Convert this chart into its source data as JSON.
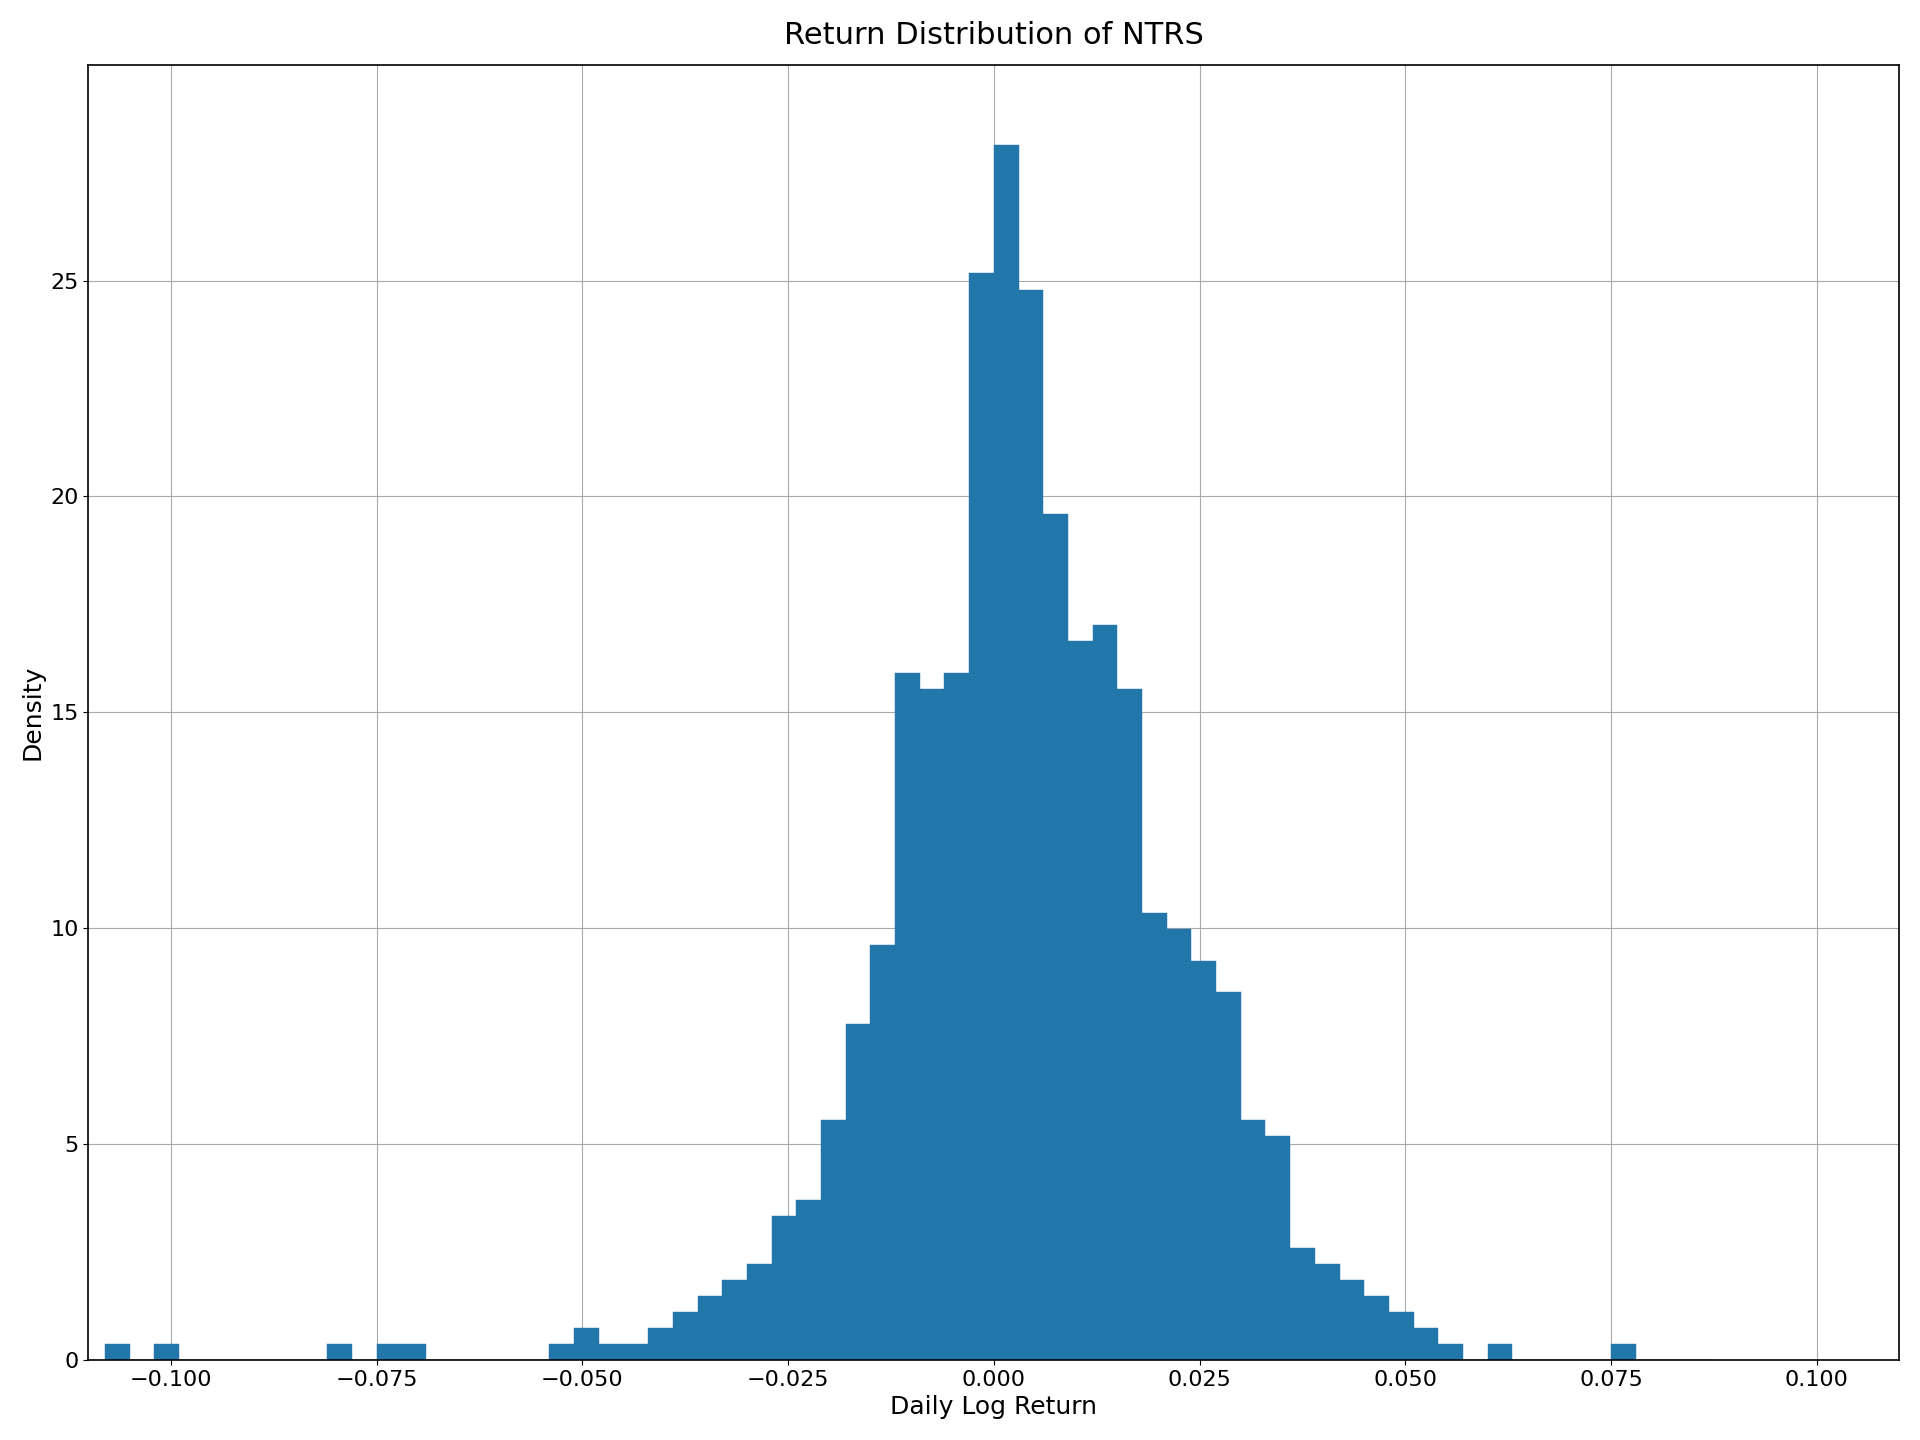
{
  "title": "Return Distribution of NTRS",
  "xlabel": "Daily Log Return",
  "ylabel": "Density",
  "bar_color": "#2277aa",
  "xlim": [
    -0.11,
    0.11
  ],
  "ylim": [
    0,
    30
  ],
  "xticks": [
    -0.1,
    -0.075,
    -0.05,
    -0.025,
    0.0,
    0.025,
    0.05,
    0.075,
    0.1
  ],
  "xtick_labels": [
    "−0.100",
    "−0.075",
    "−0.050",
    "−0.025",
    "0.000",
    "0.025",
    "0.050",
    "0.075",
    "0.100"
  ],
  "yticks": [
    0,
    5,
    10,
    15,
    20,
    25
  ],
  "title_fontsize": 22,
  "label_fontsize": 18,
  "tick_fontsize": 16,
  "bin_width": 0.003,
  "bin_edges": [
    -0.108,
    -0.105,
    -0.102,
    -0.099,
    -0.096,
    -0.093,
    -0.09,
    -0.087,
    -0.084,
    -0.081,
    -0.078,
    -0.075,
    -0.072,
    -0.069,
    -0.066,
    -0.063,
    -0.06,
    -0.057,
    -0.054,
    -0.051,
    -0.048,
    -0.045,
    -0.042,
    -0.039,
    -0.036,
    -0.033,
    -0.03,
    -0.027,
    -0.024,
    -0.021,
    -0.018,
    -0.015,
    -0.012,
    -0.009,
    -0.006,
    -0.003,
    0.0,
    0.003,
    0.006,
    0.009,
    0.012,
    0.015,
    0.018,
    0.021,
    0.024,
    0.027,
    0.03,
    0.033,
    0.036,
    0.039,
    0.042,
    0.045,
    0.048,
    0.051,
    0.054,
    0.057,
    0.06,
    0.063,
    0.066,
    0.069,
    0.072,
    0.075,
    0.078,
    0.081,
    0.084
  ],
  "densities": [
    0.37,
    0.0,
    0.37,
    0.0,
    0.0,
    0.0,
    0.0,
    0.0,
    0.0,
    0.37,
    0.0,
    0.37,
    0.37,
    0.0,
    0.0,
    0.0,
    0.0,
    0.0,
    0.37,
    0.74,
    0.37,
    0.37,
    0.74,
    1.11,
    1.48,
    1.85,
    2.22,
    3.33,
    3.7,
    5.55,
    7.77,
    9.62,
    15.91,
    15.54,
    15.91,
    25.18,
    28.14,
    24.77,
    19.59,
    16.65,
    17.02,
    15.54,
    10.36,
    9.99,
    9.25,
    8.51,
    5.55,
    5.18,
    2.59,
    2.22,
    1.85,
    1.48,
    1.11,
    0.74,
    0.37,
    0.0,
    0.37,
    0.0,
    0.0,
    0.0,
    0.0,
    0.37,
    0.0,
    0.0,
    0.0
  ],
  "grid_color": "#aaaaaa",
  "grid_linewidth": 0.8,
  "background_color": "#ffffff"
}
